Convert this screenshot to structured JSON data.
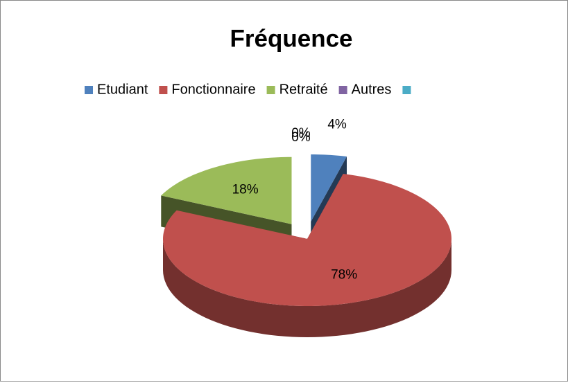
{
  "chart_data": {
    "type": "pie3d",
    "title": "Fréquence",
    "categories": [
      "Etudiant",
      "Fonctionnaire",
      "Retraité",
      "Autres",
      null
    ],
    "values": [
      4,
      78,
      18,
      0,
      0
    ],
    "value_labels": [
      "4%",
      "78%",
      "18%",
      "0%",
      "0%"
    ],
    "colors": [
      "#4f81bd",
      "#c0504d",
      "#9bbb59",
      "#8064a2",
      "#4bacc6"
    ],
    "legend": "top"
  }
}
